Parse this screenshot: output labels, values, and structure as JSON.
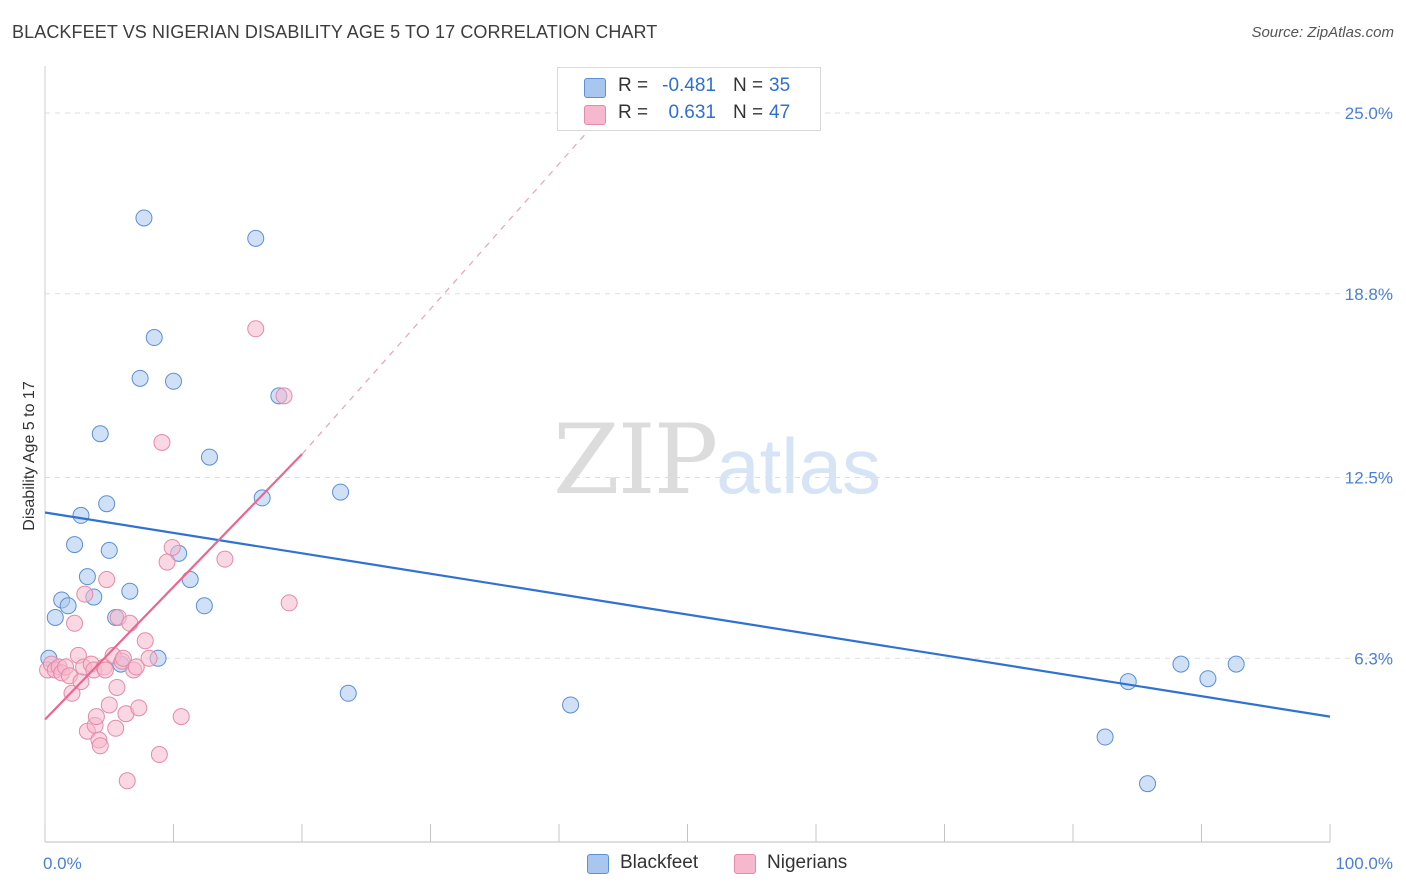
{
  "title": "BLACKFEET VS NIGERIAN DISABILITY AGE 5 TO 17 CORRELATION CHART",
  "source": "Source: ZipAtlas.com",
  "watermark": {
    "zip": "ZIP",
    "atlas": "atlas"
  },
  "legend": {
    "rows": [
      {
        "r_label": "R =",
        "r_value": "-0.481",
        "n_label": "N =",
        "n_value": "35"
      },
      {
        "r_label": "R =",
        "r_value": "0.631",
        "n_label": "N =",
        "n_value": "47"
      }
    ]
  },
  "bottom_legend": [
    "Blackfeet",
    "Nigerians"
  ],
  "colors": {
    "blackfeet_fill": "#a9c6ee",
    "blackfeet_stroke": "#5b8fd6",
    "blackfeet_line": "#2f72d1",
    "nigerians_fill": "#f6b8cc",
    "nigerians_stroke": "#e58aa7",
    "nigerians_line": "#e8688f",
    "grid": "#dddddd"
  },
  "chart_data": {
    "type": "scatter",
    "title": "BLACKFEET VS NIGERIAN DISABILITY AGE 5 TO 17 CORRELATION CHART",
    "xlabel": "",
    "ylabel": "Disability Age 5 to 17",
    "xlim": [
      0,
      100
    ],
    "ylim": [
      0,
      26.2
    ],
    "x_tick_labels": [
      "0.0%",
      "100.0%"
    ],
    "y_ticks": [
      6.3,
      12.5,
      18.8,
      25.0
    ],
    "y_tick_labels": [
      "6.3%",
      "12.5%",
      "18.8%",
      "25.0%"
    ],
    "series": [
      {
        "name": "Blackfeet",
        "points": [
          [
            0.3,
            6.3
          ],
          [
            0.8,
            7.7
          ],
          [
            1.3,
            8.3
          ],
          [
            1.8,
            8.1
          ],
          [
            2.3,
            10.2
          ],
          [
            2.8,
            11.2
          ],
          [
            3.3,
            9.1
          ],
          [
            3.8,
            8.4
          ],
          [
            4.3,
            14.0
          ],
          [
            4.8,
            11.6
          ],
          [
            5.0,
            10.0
          ],
          [
            5.5,
            7.7
          ],
          [
            5.9,
            6.1
          ],
          [
            6.6,
            8.6
          ],
          [
            7.4,
            15.9
          ],
          [
            7.7,
            21.4
          ],
          [
            8.5,
            17.3
          ],
          [
            8.8,
            6.3
          ],
          [
            10.0,
            15.8
          ],
          [
            10.4,
            9.9
          ],
          [
            11.3,
            9.0
          ],
          [
            12.4,
            8.1
          ],
          [
            12.8,
            13.2
          ],
          [
            16.4,
            20.7
          ],
          [
            16.9,
            11.8
          ],
          [
            18.2,
            15.3
          ],
          [
            23.0,
            12.0
          ],
          [
            23.6,
            5.1
          ],
          [
            40.9,
            4.7
          ],
          [
            82.5,
            3.6
          ],
          [
            84.3,
            5.5
          ],
          [
            85.8,
            2.0
          ],
          [
            88.4,
            6.1
          ],
          [
            90.5,
            5.6
          ],
          [
            92.7,
            6.1
          ]
        ]
      },
      {
        "name": "Nigerians",
        "points": [
          [
            0.2,
            5.9
          ],
          [
            0.5,
            6.1
          ],
          [
            0.8,
            5.9
          ],
          [
            1.1,
            6.0
          ],
          [
            1.3,
            5.8
          ],
          [
            1.6,
            6.0
          ],
          [
            1.9,
            5.7
          ],
          [
            2.1,
            5.1
          ],
          [
            2.3,
            7.5
          ],
          [
            2.6,
            6.4
          ],
          [
            2.8,
            5.5
          ],
          [
            3.0,
            6.0
          ],
          [
            3.1,
            8.5
          ],
          [
            3.3,
            3.8
          ],
          [
            3.6,
            6.1
          ],
          [
            3.8,
            5.9
          ],
          [
            3.9,
            4.0
          ],
          [
            4.0,
            4.3
          ],
          [
            4.2,
            3.5
          ],
          [
            4.3,
            3.3
          ],
          [
            4.6,
            6.0
          ],
          [
            4.7,
            5.9
          ],
          [
            4.8,
            9.0
          ],
          [
            5.0,
            4.7
          ],
          [
            5.3,
            6.4
          ],
          [
            5.5,
            3.9
          ],
          [
            5.6,
            5.3
          ],
          [
            5.7,
            7.7
          ],
          [
            6.0,
            6.2
          ],
          [
            6.1,
            6.3
          ],
          [
            6.3,
            4.4
          ],
          [
            6.4,
            2.1
          ],
          [
            6.6,
            7.5
          ],
          [
            6.9,
            5.9
          ],
          [
            7.1,
            6.0
          ],
          [
            7.3,
            4.6
          ],
          [
            7.8,
            6.9
          ],
          [
            8.1,
            6.3
          ],
          [
            8.9,
            3.0
          ],
          [
            9.1,
            13.7
          ],
          [
            9.5,
            9.6
          ],
          [
            9.9,
            10.1
          ],
          [
            10.6,
            4.3
          ],
          [
            14.0,
            9.7
          ],
          [
            16.4,
            17.6
          ],
          [
            18.6,
            15.3
          ],
          [
            19.0,
            8.2
          ]
        ]
      }
    ],
    "trend_lines": [
      {
        "name": "Blackfeet",
        "x": [
          0,
          100
        ],
        "y": [
          11.3,
          4.3
        ]
      },
      {
        "name": "Nigerians",
        "x": [
          0,
          20
        ],
        "y": [
          4.2,
          13.3
        ],
        "dashed_extension_to": [
          43.5,
          25.0
        ]
      }
    ],
    "legend_placement": "top-center",
    "grid": true
  }
}
